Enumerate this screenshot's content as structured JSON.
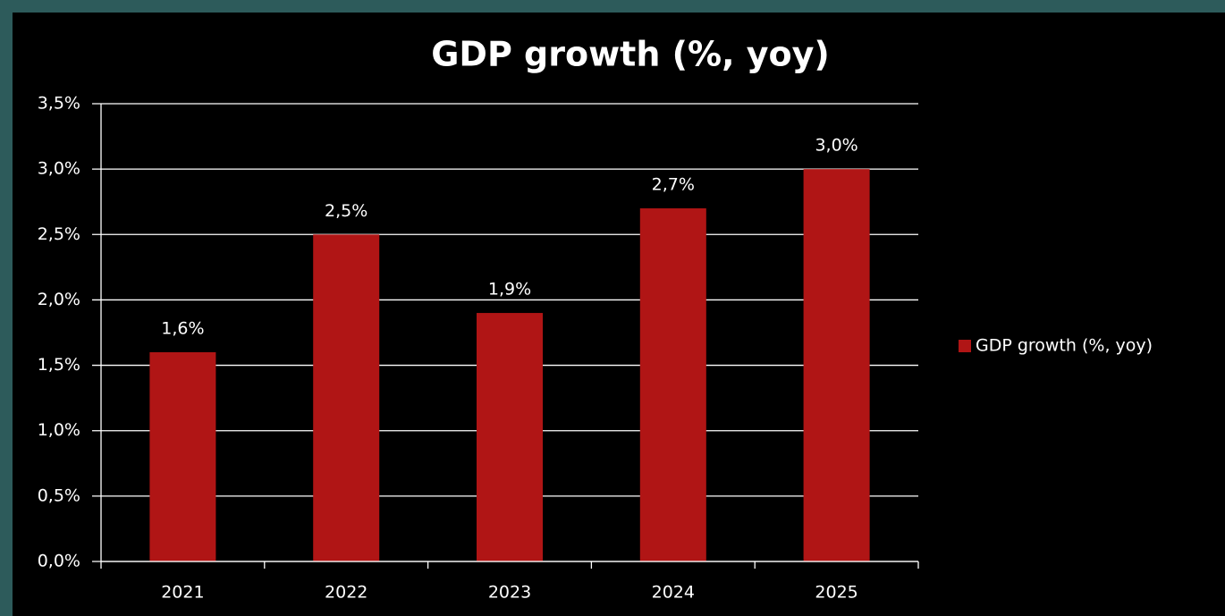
{
  "chart_data": {
    "type": "bar",
    "title": "GDP growth (%, yoy)",
    "categories": [
      "2021",
      "2022",
      "2023",
      "2024",
      "2025"
    ],
    "series": [
      {
        "name": "GDP growth (%, yoy)",
        "color": "#b01515",
        "values": [
          1.6,
          2.5,
          1.9,
          2.7,
          3.0
        ],
        "value_labels": [
          "1,6%",
          "2,5%",
          "1,9%",
          "2,7%",
          "3,0%"
        ]
      }
    ],
    "ylim": [
      0,
      3.5
    ],
    "yticks": [
      {
        "value": 0,
        "label": "0,0%"
      },
      {
        "value": 0.5,
        "label": "0,5%"
      },
      {
        "value": 1,
        "label": "1,0%"
      },
      {
        "value": 1.5,
        "label": "1,5%"
      },
      {
        "value": 2,
        "label": "2,0%"
      },
      {
        "value": 2.5,
        "label": "2,5%"
      },
      {
        "value": 3,
        "label": "3,0%"
      },
      {
        "value": 3.5,
        "label": "3,5%"
      }
    ],
    "grid": true,
    "legend": "right"
  }
}
